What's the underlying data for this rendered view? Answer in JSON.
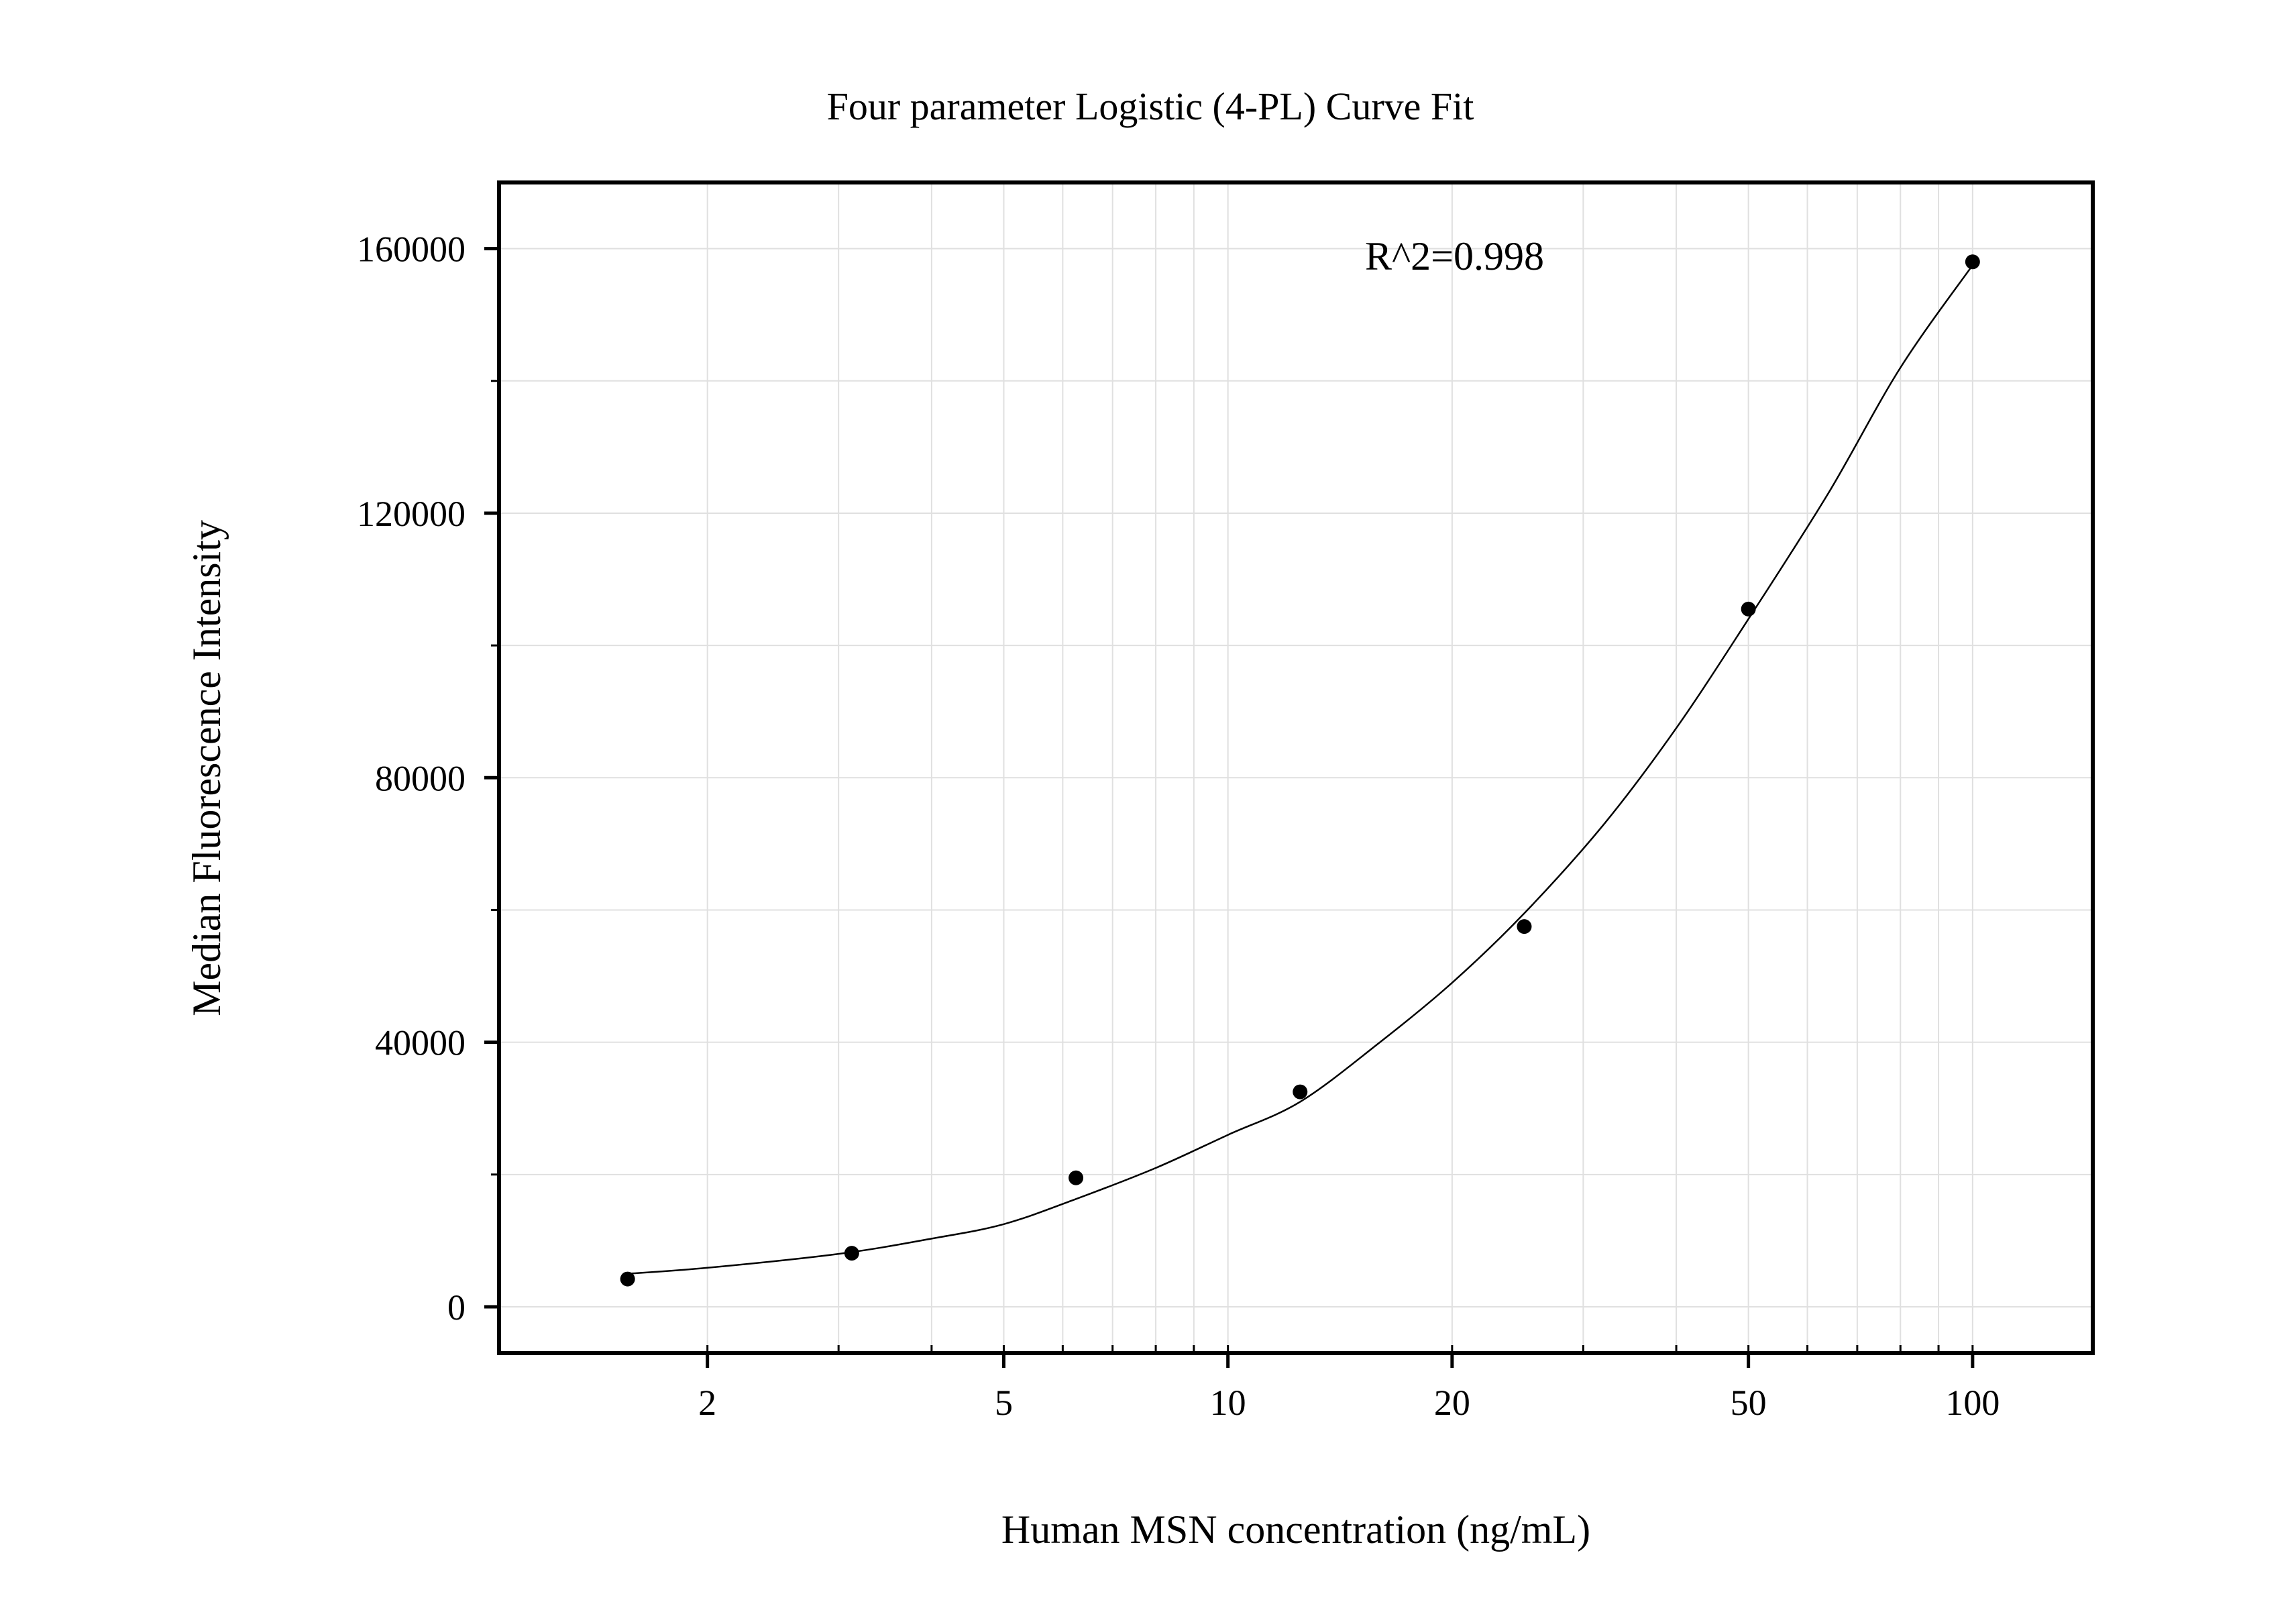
{
  "chart_data": {
    "type": "scatter",
    "title": "Four parameter Logistic (4-PL) Curve Fit",
    "xlabel": "Human MSN concentration (ng/mL)",
    "ylabel": "Median Fluorescence Intensity",
    "x_scale": "log",
    "xlim": [
      1.05,
      145
    ],
    "ylim": [
      -7000,
      170000
    ],
    "x_ticks": [
      2,
      5,
      10,
      20,
      50,
      100
    ],
    "x_tick_labels": [
      "2",
      "5",
      "10",
      "20",
      "50",
      "100"
    ],
    "x_minor_ticks": [
      2,
      3,
      4,
      5,
      6,
      7,
      8,
      9,
      10,
      20,
      30,
      40,
      50,
      60,
      70,
      80,
      90,
      100
    ],
    "y_ticks": [
      0,
      40000,
      80000,
      120000,
      160000
    ],
    "y_tick_labels": [
      "0",
      "40000",
      "80000",
      "120000",
      "160000"
    ],
    "y_minor_ticks": [
      20000,
      60000,
      100000,
      140000
    ],
    "grid": true,
    "annotation": "R^2=0.998",
    "points": {
      "x": [
        1.5625,
        3.125,
        6.25,
        12.5,
        25,
        50,
        100
      ],
      "y": [
        4200,
        8100,
        19500,
        32500,
        57500,
        105500,
        158000
      ]
    },
    "fit_curve": {
      "x": [
        1.5625,
        2,
        3,
        4,
        5,
        6.25,
        8,
        10,
        12.5,
        16,
        20,
        25,
        32,
        40,
        50,
        64,
        80,
        100
      ],
      "y": [
        5000,
        5900,
        8000,
        10300,
        12500,
        16300,
        21000,
        26000,
        31000,
        40000,
        49000,
        59500,
        73000,
        87500,
        104000,
        123000,
        142000,
        157500
      ]
    },
    "colors": {
      "points": "#000000",
      "curve": "#000000",
      "grid": "#e0e0e0",
      "frame": "#000000"
    }
  }
}
